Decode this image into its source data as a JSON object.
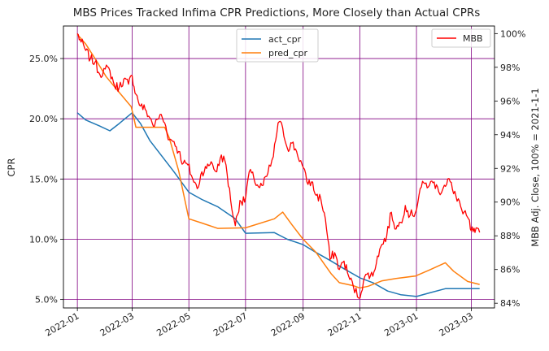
{
  "chart_data": {
    "type": "line",
    "title": "MBS Prices Tracked Infima CPR Predictions, More Closely than Actual CPRs",
    "ylabel_left": "CPR",
    "ylabel_right": "MBB Adj. Close, 100% = 2021-1-1",
    "xlabel": "",
    "xlim": [
      "2021-12-17",
      "2023-03-26"
    ],
    "ylim_left": [
      0.043,
      0.277
    ],
    "ylim_right": [
      0.8372,
      1.0045
    ],
    "x_ticks": [
      "2022-01",
      "2022-03",
      "2022-05",
      "2022-07",
      "2022-09",
      "2022-11",
      "2023-01",
      "2023-03"
    ],
    "y_ticks_left": [
      "5.0%",
      "10.0%",
      "15.0%",
      "20.0%",
      "25.0%"
    ],
    "y_ticks_right": [
      "84%",
      "86%",
      "88%",
      "90%",
      "92%",
      "94%",
      "96%",
      "98%",
      "100%"
    ],
    "grid": true,
    "grid_color": "#800080",
    "legend_left": {
      "placement": "top-center",
      "entries": [
        "act_cpr",
        "pred_cpr"
      ]
    },
    "legend_right": {
      "placement": "top-right",
      "entries": [
        "MBB"
      ]
    },
    "series": [
      {
        "name": "act_cpr",
        "axis": "left",
        "color": "#1f77b4",
        "points": [
          [
            "2022-01-01",
            0.205
          ],
          [
            "2022-01-10",
            0.199
          ],
          [
            "2022-01-25",
            0.194
          ],
          [
            "2022-02-05",
            0.19
          ],
          [
            "2022-02-15",
            0.196
          ],
          [
            "2022-03-01",
            0.205
          ],
          [
            "2022-03-10",
            0.196
          ],
          [
            "2022-03-20",
            0.182
          ],
          [
            "2022-04-01",
            0.17
          ],
          [
            "2022-04-15",
            0.156
          ],
          [
            "2022-05-01",
            0.139
          ],
          [
            "2022-05-15",
            0.133
          ],
          [
            "2022-06-01",
            0.127
          ],
          [
            "2022-06-20",
            0.117
          ],
          [
            "2022-07-01",
            0.105
          ],
          [
            "2022-08-01",
            0.1055
          ],
          [
            "2022-08-15",
            0.1
          ],
          [
            "2022-09-01",
            0.0955
          ],
          [
            "2022-09-15",
            0.089
          ],
          [
            "2022-10-01",
            0.082
          ],
          [
            "2022-10-15",
            0.0755
          ],
          [
            "2022-11-01",
            0.068
          ],
          [
            "2022-11-15",
            0.064
          ],
          [
            "2022-12-01",
            0.057
          ],
          [
            "2022-12-15",
            0.054
          ],
          [
            "2023-01-01",
            0.0525
          ],
          [
            "2023-01-15",
            0.0555
          ],
          [
            "2023-02-01",
            0.059
          ],
          [
            "2023-03-10",
            0.059
          ]
        ]
      },
      {
        "name": "pred_cpr",
        "axis": "left",
        "color": "#ff7f0e",
        "points": [
          [
            "2022-01-01",
            0.27
          ],
          [
            "2022-01-10",
            0.262
          ],
          [
            "2022-01-20",
            0.25
          ],
          [
            "2022-02-01",
            0.235
          ],
          [
            "2022-02-15",
            0.222
          ],
          [
            "2022-02-28",
            0.21
          ],
          [
            "2022-03-05",
            0.193
          ],
          [
            "2022-03-20",
            0.193
          ],
          [
            "2022-04-05",
            0.193
          ],
          [
            "2022-04-10",
            0.184
          ],
          [
            "2022-04-20",
            0.157
          ],
          [
            "2022-05-01",
            0.117
          ],
          [
            "2022-05-15",
            0.1135
          ],
          [
            "2022-06-01",
            0.109
          ],
          [
            "2022-07-01",
            0.1095
          ],
          [
            "2022-08-01",
            0.117
          ],
          [
            "2022-08-10",
            0.1225
          ],
          [
            "2022-08-20",
            0.112
          ],
          [
            "2022-09-01",
            0.1
          ],
          [
            "2022-09-15",
            0.089
          ],
          [
            "2022-10-01",
            0.0715
          ],
          [
            "2022-10-10",
            0.064
          ],
          [
            "2022-10-25",
            0.0615
          ],
          [
            "2022-11-01",
            0.0595
          ],
          [
            "2022-11-10",
            0.061
          ],
          [
            "2022-11-25",
            0.0655
          ],
          [
            "2022-12-10",
            0.0675
          ],
          [
            "2022-12-31",
            0.0695
          ],
          [
            "2023-01-15",
            0.0745
          ],
          [
            "2023-02-01",
            0.0805
          ],
          [
            "2023-02-10",
            0.0735
          ],
          [
            "2023-02-25",
            0.065
          ],
          [
            "2023-03-10",
            0.0625
          ]
        ]
      },
      {
        "name": "MBB",
        "axis": "right",
        "color": "#ff0000",
        "points": [
          [
            "2022-01-01",
            1.0
          ],
          [
            "2022-01-05",
            0.995
          ],
          [
            "2022-01-10",
            0.99
          ],
          [
            "2022-01-15",
            0.985
          ],
          [
            "2022-01-20",
            0.983
          ],
          [
            "2022-01-25",
            0.976
          ],
          [
            "2022-01-31",
            0.979
          ],
          [
            "2022-02-05",
            0.978
          ],
          [
            "2022-02-10",
            0.969
          ],
          [
            "2022-02-15",
            0.968
          ],
          [
            "2022-02-20",
            0.973
          ],
          [
            "2022-02-25",
            0.97
          ],
          [
            "2022-03-01",
            0.975
          ],
          [
            "2022-03-05",
            0.964
          ],
          [
            "2022-03-10",
            0.957
          ],
          [
            "2022-03-15",
            0.955
          ],
          [
            "2022-03-20",
            0.95
          ],
          [
            "2022-03-25",
            0.945
          ],
          [
            "2022-03-31",
            0.952
          ],
          [
            "2022-04-05",
            0.947
          ],
          [
            "2022-04-10",
            0.937
          ],
          [
            "2022-04-15",
            0.936
          ],
          [
            "2022-04-20",
            0.93
          ],
          [
            "2022-04-25",
            0.923
          ],
          [
            "2022-04-30",
            0.922
          ],
          [
            "2022-05-05",
            0.914
          ],
          [
            "2022-05-10",
            0.908
          ],
          [
            "2022-05-15",
            0.918
          ],
          [
            "2022-05-20",
            0.92
          ],
          [
            "2022-05-25",
            0.924
          ],
          [
            "2022-05-31",
            0.918
          ],
          [
            "2022-06-05",
            0.928
          ],
          [
            "2022-06-10",
            0.922
          ],
          [
            "2022-06-15",
            0.901
          ],
          [
            "2022-06-20",
            0.886
          ],
          [
            "2022-06-25",
            0.901
          ],
          [
            "2022-06-30",
            0.9
          ],
          [
            "2022-07-05",
            0.918
          ],
          [
            "2022-07-10",
            0.914
          ],
          [
            "2022-07-15",
            0.909
          ],
          [
            "2022-07-20",
            0.91
          ],
          [
            "2022-07-25",
            0.917
          ],
          [
            "2022-07-31",
            0.927
          ],
          [
            "2022-08-05",
            0.947
          ],
          [
            "2022-08-10",
            0.944
          ],
          [
            "2022-08-15",
            0.932
          ],
          [
            "2022-08-20",
            0.935
          ],
          [
            "2022-08-25",
            0.93
          ],
          [
            "2022-08-31",
            0.922
          ],
          [
            "2022-09-05",
            0.912
          ],
          [
            "2022-09-10",
            0.912
          ],
          [
            "2022-09-15",
            0.904
          ],
          [
            "2022-09-20",
            0.902
          ],
          [
            "2022-09-25",
            0.89
          ],
          [
            "2022-09-30",
            0.866
          ],
          [
            "2022-10-05",
            0.87
          ],
          [
            "2022-10-10",
            0.86
          ],
          [
            "2022-10-15",
            0.865
          ],
          [
            "2022-10-20",
            0.856
          ],
          [
            "2022-10-25",
            0.85
          ],
          [
            "2022-10-31",
            0.843
          ],
          [
            "2022-11-05",
            0.853
          ],
          [
            "2022-11-10",
            0.858
          ],
          [
            "2022-11-15",
            0.856
          ],
          [
            "2022-11-20",
            0.868
          ],
          [
            "2022-11-25",
            0.875
          ],
          [
            "2022-11-30",
            0.88
          ],
          [
            "2022-12-05",
            0.894
          ],
          [
            "2022-12-10",
            0.884
          ],
          [
            "2022-12-15",
            0.888
          ],
          [
            "2022-12-20",
            0.898
          ],
          [
            "2022-12-25",
            0.892
          ],
          [
            "2022-12-31",
            0.894
          ],
          [
            "2023-01-05",
            0.908
          ],
          [
            "2023-01-10",
            0.911
          ],
          [
            "2023-01-15",
            0.91
          ],
          [
            "2023-01-20",
            0.912
          ],
          [
            "2023-01-25",
            0.906
          ],
          [
            "2023-01-31",
            0.91
          ],
          [
            "2023-02-05",
            0.914
          ],
          [
            "2023-02-10",
            0.905
          ],
          [
            "2023-02-15",
            0.902
          ],
          [
            "2023-02-20",
            0.893
          ],
          [
            "2023-02-25",
            0.891
          ],
          [
            "2023-03-01",
            0.883
          ],
          [
            "2023-03-05",
            0.882
          ],
          [
            "2023-03-10",
            0.882
          ]
        ]
      }
    ]
  }
}
